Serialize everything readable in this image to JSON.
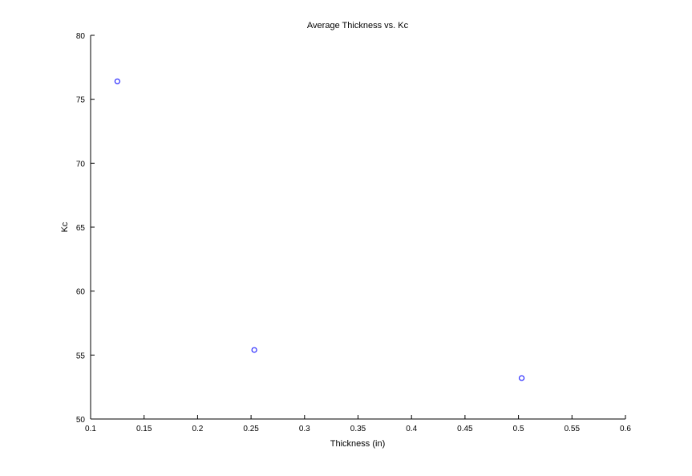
{
  "chart_data": {
    "type": "scatter",
    "title": "Average Thickness vs. Kc",
    "xlabel": "Thickness (in)",
    "ylabel": "Kc",
    "xlim": [
      0.1,
      0.6
    ],
    "ylim": [
      50,
      80
    ],
    "xticks": [
      0.1,
      0.15,
      0.2,
      0.25,
      0.3,
      0.35,
      0.4,
      0.45,
      0.5,
      0.55,
      0.6
    ],
    "xtick_labels": [
      "0.1",
      "0.15",
      "0.2",
      "0.25",
      "0.3",
      "0.35",
      "0.4",
      "0.45",
      "0.5",
      "0.55",
      "0.6"
    ],
    "yticks": [
      50,
      55,
      60,
      65,
      70,
      75,
      80
    ],
    "ytick_labels": [
      "50",
      "55",
      "60",
      "65",
      "70",
      "75",
      "80"
    ],
    "grid": false,
    "legend": false,
    "marker": "circle-open",
    "marker_color": "#0000ff",
    "series": [
      {
        "x": [
          0.125,
          0.253,
          0.503
        ],
        "y": [
          76.4,
          55.4,
          53.2
        ]
      }
    ]
  }
}
